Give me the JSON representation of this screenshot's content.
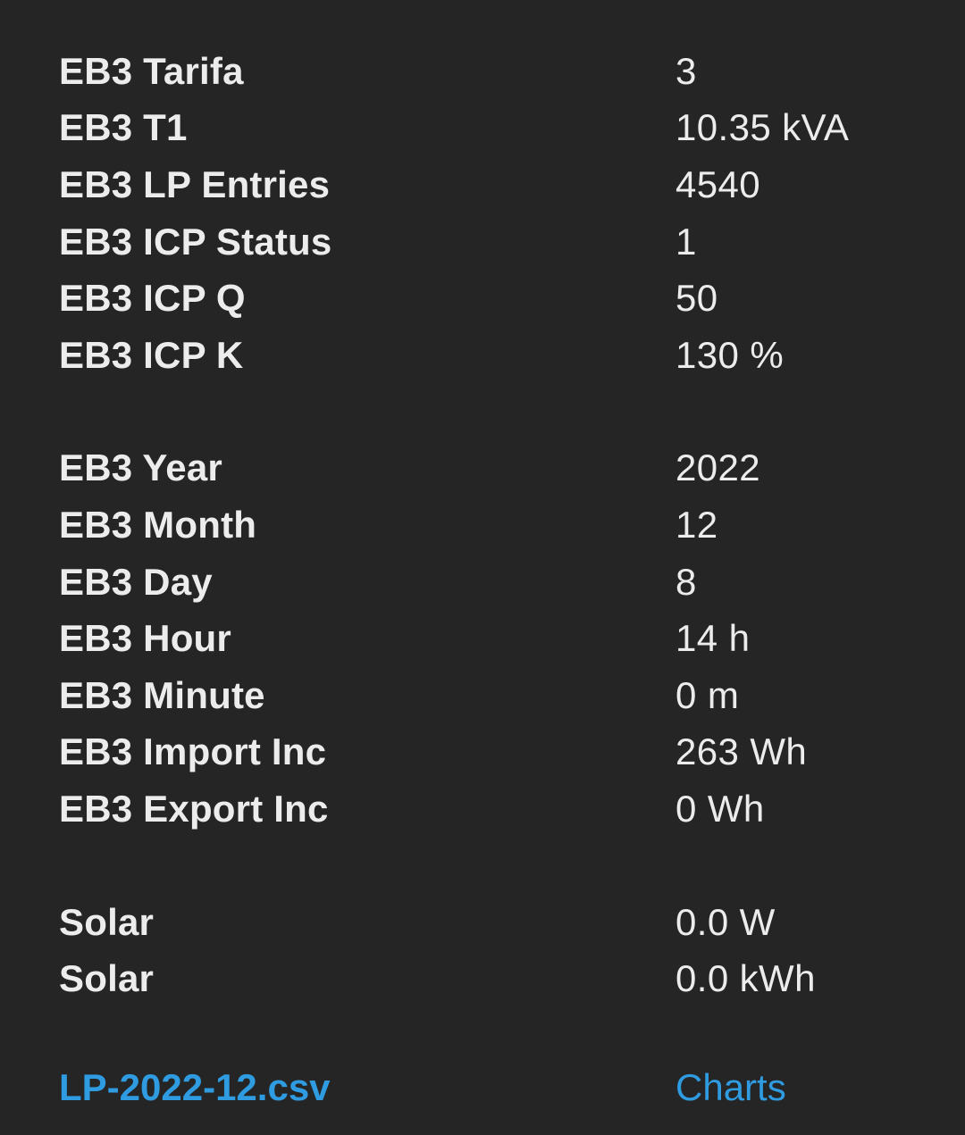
{
  "meter": [
    {
      "label": "EB3 Tarifa",
      "value": "3"
    },
    {
      "label": "EB3 T1",
      "value": "10.35 kVA"
    },
    {
      "label": "EB3 LP Entries",
      "value": "4540"
    },
    {
      "label": "EB3 ICP Status",
      "value": "1"
    },
    {
      "label": "EB3 ICP Q",
      "value": "50"
    },
    {
      "label": "EB3 ICP K",
      "value": "130 %"
    }
  ],
  "datetime": [
    {
      "label": "EB3 Year",
      "value": "2022"
    },
    {
      "label": "EB3 Month",
      "value": "12"
    },
    {
      "label": "EB3 Day",
      "value": "8"
    },
    {
      "label": "EB3 Hour",
      "value": "14 h"
    },
    {
      "label": "EB3 Minute",
      "value": "0 m"
    },
    {
      "label": "EB3 Import Inc",
      "value": "263 Wh"
    },
    {
      "label": "EB3 Export Inc",
      "value": "0 Wh"
    }
  ],
  "solar": [
    {
      "label": "Solar",
      "value": "0.0 W"
    },
    {
      "label": "Solar",
      "value": "0.0 kWh"
    }
  ],
  "links": {
    "csv": "LP-2022-12.csv",
    "charts": "Charts"
  },
  "colors": {
    "background": "#252525",
    "text": "#ececec",
    "link": "#2f9be0"
  }
}
